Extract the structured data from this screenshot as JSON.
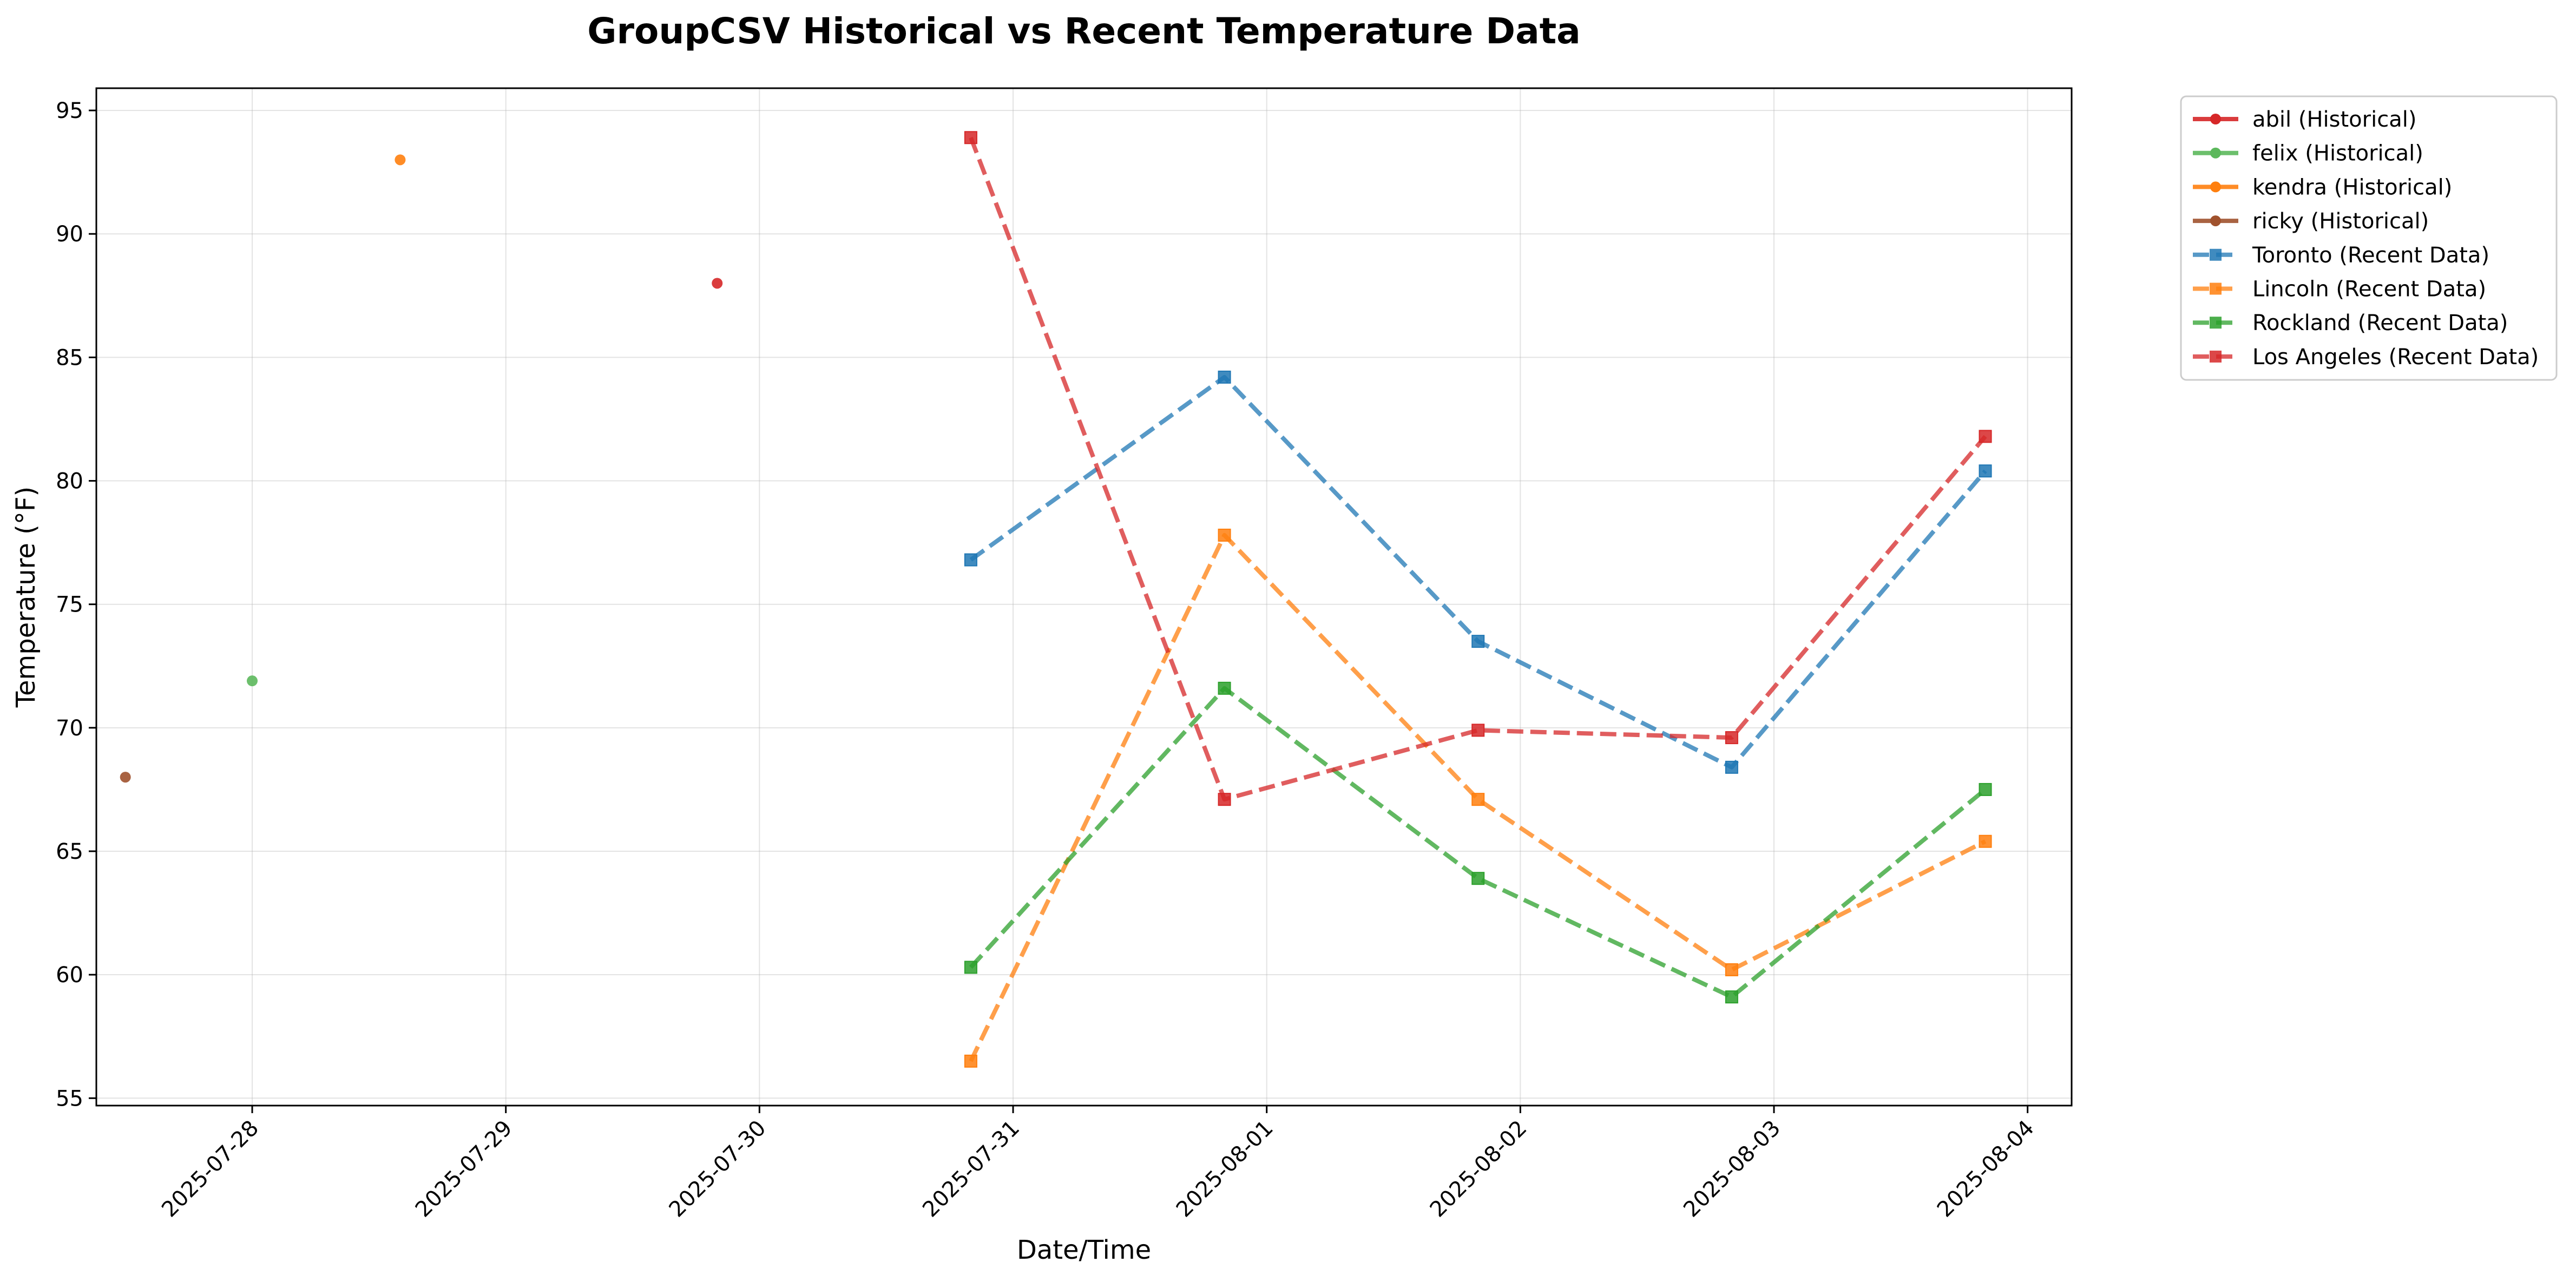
{
  "chart_data": {
    "type": "line",
    "title": "GroupCSV Historical vs Recent Temperature Data",
    "xlabel": "Date/Time",
    "ylabel": "Temperature (°F)",
    "x_axis_type": "date",
    "xlim": [
      "2025-07-27T09:15",
      "2025-08-04T04:10"
    ],
    "ylim": [
      54.7,
      95.9
    ],
    "x_ticks": [
      "2025-07-28",
      "2025-07-29",
      "2025-07-30",
      "2025-07-31",
      "2025-08-01",
      "2025-08-02",
      "2025-08-03",
      "2025-08-04"
    ],
    "y_ticks": [
      55,
      60,
      65,
      70,
      75,
      80,
      85,
      90,
      95
    ],
    "grid": true,
    "legend_position": "outside-top-right",
    "series": [
      {
        "name": "abil (Historical)",
        "color": "#d62728",
        "marker": "circle",
        "linestyle": "solid",
        "points": [
          {
            "x": "2025-07-29T20:00",
            "y": 88
          }
        ]
      },
      {
        "name": "felix (Historical)",
        "color": "#5cb85c",
        "marker": "circle",
        "linestyle": "solid",
        "points": [
          {
            "x": "2025-07-28T00:00",
            "y": 71.9
          }
        ]
      },
      {
        "name": "kendra (Historical)",
        "color": "#ff7f0e",
        "marker": "circle",
        "linestyle": "solid",
        "points": [
          {
            "x": "2025-07-28T14:00",
            "y": 93
          }
        ]
      },
      {
        "name": "ricky (Historical)",
        "color": "#a0522d",
        "marker": "circle",
        "linestyle": "solid",
        "points": [
          {
            "x": "2025-07-27T12:00",
            "y": 68
          }
        ]
      },
      {
        "name": "Toronto (Recent Data)",
        "color": "#1f77b4",
        "marker": "square",
        "linestyle": "dashed",
        "points": [
          {
            "x": "2025-07-30T20:00",
            "y": 76.8
          },
          {
            "x": "2025-07-31T20:00",
            "y": 84.2
          },
          {
            "x": "2025-08-01T20:00",
            "y": 73.5
          },
          {
            "x": "2025-08-02T20:00",
            "y": 68.4
          },
          {
            "x": "2025-08-03T20:00",
            "y": 80.4
          }
        ]
      },
      {
        "name": "Lincoln (Recent Data)",
        "color": "#ff7f0e",
        "marker": "square",
        "linestyle": "dashed",
        "points": [
          {
            "x": "2025-07-30T20:00",
            "y": 56.5
          },
          {
            "x": "2025-07-31T20:00",
            "y": 77.8
          },
          {
            "x": "2025-08-01T20:00",
            "y": 67.1
          },
          {
            "x": "2025-08-02T20:00",
            "y": 60.2
          },
          {
            "x": "2025-08-03T20:00",
            "y": 65.4
          }
        ]
      },
      {
        "name": "Rockland (Recent Data)",
        "color": "#2ca02c",
        "marker": "square",
        "linestyle": "dashed",
        "points": [
          {
            "x": "2025-07-30T20:00",
            "y": 60.3
          },
          {
            "x": "2025-07-31T20:00",
            "y": 71.6
          },
          {
            "x": "2025-08-01T20:00",
            "y": 63.9
          },
          {
            "x": "2025-08-02T20:00",
            "y": 59.1
          },
          {
            "x": "2025-08-03T20:00",
            "y": 67.5
          }
        ]
      },
      {
        "name": "Los Angeles (Recent Data)",
        "color": "#d62728",
        "marker": "square",
        "linestyle": "dashed",
        "points": [
          {
            "x": "2025-07-30T20:00",
            "y": 93.9
          },
          {
            "x": "2025-07-31T20:00",
            "y": 67.1
          },
          {
            "x": "2025-08-01T20:00",
            "y": 69.9
          },
          {
            "x": "2025-08-02T20:00",
            "y": 69.6
          },
          {
            "x": "2025-08-03T20:00",
            "y": 81.8
          }
        ]
      }
    ]
  }
}
